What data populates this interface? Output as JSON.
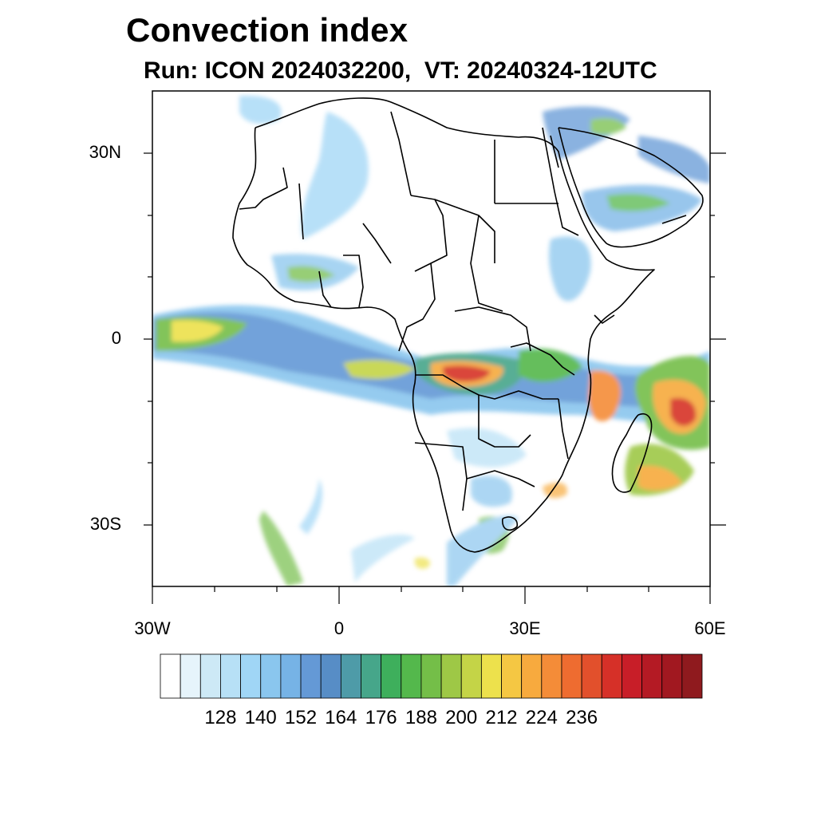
{
  "header": {
    "title": "Convection index",
    "subtitle": "Run: ICON 2024032200,  VT: 20240324-12UTC"
  },
  "map": {
    "lon_range": [
      -30,
      60
    ],
    "lat_range": [
      -40,
      40
    ],
    "lat_ticks": [
      {
        "value": 30,
        "label": "30N"
      },
      {
        "value": 0,
        "label": "0"
      },
      {
        "value": -30,
        "label": "30S"
      }
    ],
    "lon_ticks": [
      {
        "value": -30,
        "label": "30W"
      },
      {
        "value": 0,
        "label": "0"
      },
      {
        "value": 30,
        "label": "30E"
      },
      {
        "value": 60,
        "label": "60E"
      }
    ]
  },
  "colorbar": {
    "colors": [
      "#ffffff",
      "#e6f4fb",
      "#cde9f6",
      "#b7e0f6",
      "#a0d6f6",
      "#8ac6ee",
      "#76b3e6",
      "#6499d6",
      "#578dc6",
      "#4e9ba8",
      "#46a68a",
      "#3eaf5c",
      "#54b84c",
      "#74be48",
      "#9ec846",
      "#c4d447",
      "#ede14c",
      "#f5c743",
      "#f7aa3e",
      "#f48c38",
      "#ee6c30",
      "#e2502c",
      "#d63028",
      "#c81e28",
      "#b41a24",
      "#a11820",
      "#8f1a1e"
    ],
    "tick_labels": [
      "128",
      "140",
      "152",
      "164",
      "176",
      "188",
      "200",
      "212",
      "224",
      "236"
    ]
  }
}
